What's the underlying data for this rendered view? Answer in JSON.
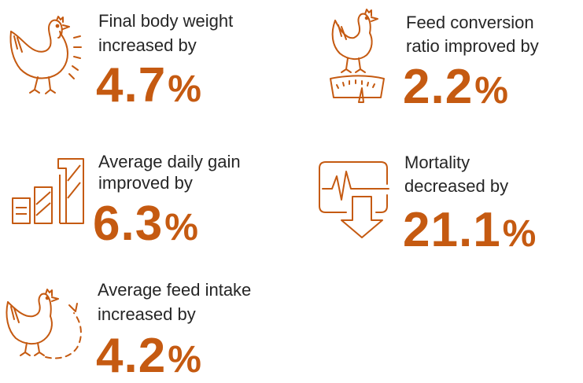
{
  "accent_color": "#c55a11",
  "stats": [
    {
      "icon": "chicken-sound-icon",
      "label_line1": "Final body weight",
      "label_line2": "increased by",
      "value": "4.7",
      "unit": "%"
    },
    {
      "icon": "chicken-scale-icon",
      "label_line1": "Feed conversion",
      "label_line2": "ratio improved by",
      "value": "2.2",
      "unit": "%"
    },
    {
      "icon": "bar-chart-icon",
      "label_line1": "Average daily gain",
      "label_line2": "improved by",
      "value": "6.3",
      "unit": "%"
    },
    {
      "icon": "heartbeat-down-arrow-icon",
      "label_line1": "Mortality",
      "label_line2": "decreased by",
      "value": "21.1",
      "unit": "%"
    },
    {
      "icon": "chicken-cycle-icon",
      "label_line1": "Average feed intake",
      "label_line2": "increased by",
      "value": "4.2",
      "unit": "%"
    }
  ]
}
